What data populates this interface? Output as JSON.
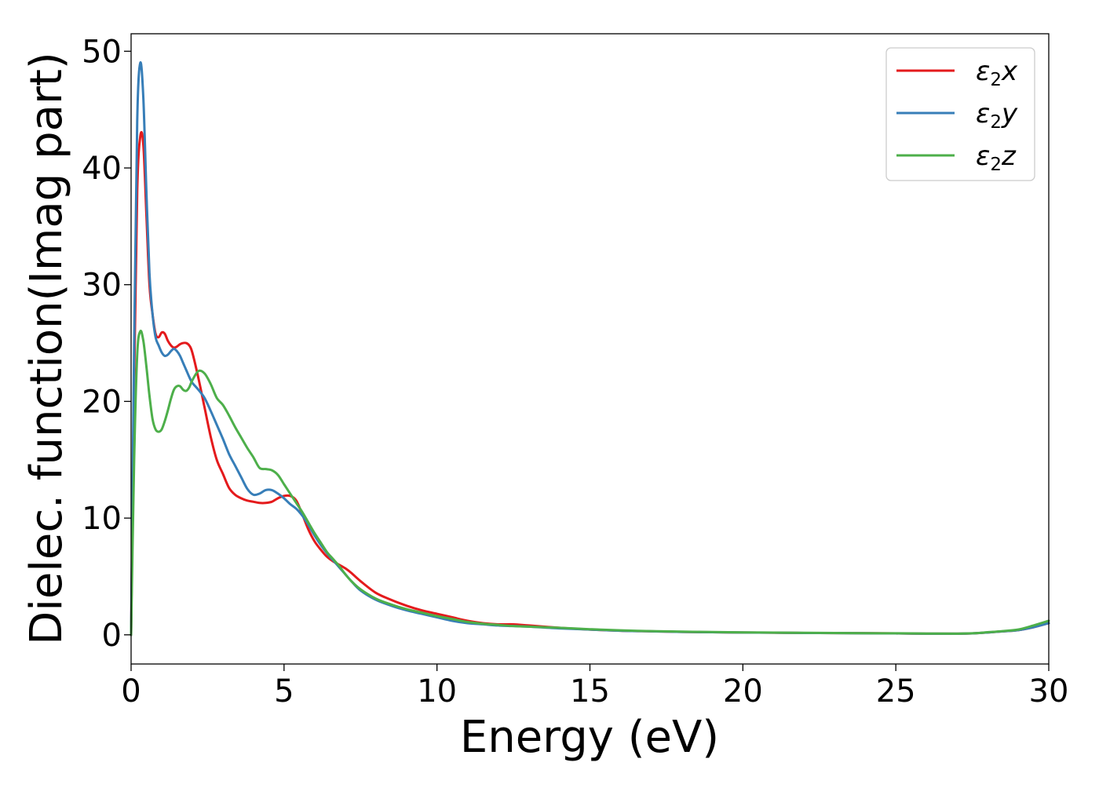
{
  "chart_data": {
    "type": "line",
    "title": "",
    "xlabel": "Energy (eV)",
    "ylabel": "Dielec. function(Imag part)",
    "xlim": [
      0,
      30
    ],
    "ylim": [
      -2.5,
      51.5
    ],
    "xticks": [
      0,
      5,
      10,
      15,
      20,
      25,
      30
    ],
    "xtick_labels": [
      "0",
      "5",
      "10",
      "15",
      "20",
      "25",
      "30"
    ],
    "yticks": [
      0,
      10,
      20,
      30,
      40,
      50
    ],
    "ytick_labels": [
      "0",
      "10",
      "20",
      "30",
      "40",
      "50"
    ],
    "grid": false,
    "legend_position": "top-right",
    "series": [
      {
        "name": "ε₂x",
        "name_base": "ε",
        "name_sub": "2",
        "name_tail": "x",
        "color": "#e41a1c",
        "x": [
          0,
          0.1,
          0.2,
          0.3,
          0.4,
          0.5,
          0.6,
          0.7,
          0.8,
          0.9,
          1.0,
          1.1,
          1.2,
          1.3,
          1.4,
          1.5,
          1.6,
          1.7,
          1.8,
          1.9,
          2.0,
          2.2,
          2.4,
          2.6,
          2.8,
          3.0,
          3.2,
          3.4,
          3.6,
          3.8,
          4.0,
          4.2,
          4.4,
          4.6,
          4.8,
          5.0,
          5.2,
          5.4,
          5.6,
          5.8,
          6.0,
          6.2,
          6.4,
          6.6,
          6.8,
          7.0,
          7.2,
          7.5,
          8.0,
          8.5,
          9.0,
          9.5,
          10,
          10.5,
          11,
          11.5,
          12,
          12.5,
          13,
          14,
          15,
          16,
          17,
          18,
          19,
          20,
          21,
          22,
          23,
          24,
          25,
          26,
          27,
          27.5,
          28,
          28.5,
          29,
          29.5,
          30
        ],
        "values": [
          0,
          22,
          38,
          42.7,
          42,
          36,
          30,
          27.5,
          25.8,
          25.5,
          25.9,
          25.8,
          25.2,
          24.8,
          24.6,
          24.7,
          24.9,
          25.0,
          25.0,
          24.8,
          24.2,
          22.0,
          19.5,
          17.0,
          15.0,
          13.8,
          12.6,
          12.0,
          11.7,
          11.5,
          11.4,
          11.3,
          11.3,
          11.4,
          11.7,
          11.9,
          11.9,
          11.5,
          10.3,
          9.0,
          8.0,
          7.3,
          6.7,
          6.3,
          6.0,
          5.7,
          5.3,
          4.6,
          3.6,
          3.0,
          2.5,
          2.1,
          1.8,
          1.5,
          1.2,
          1.0,
          0.9,
          0.9,
          0.8,
          0.6,
          0.45,
          0.35,
          0.3,
          0.25,
          0.22,
          0.2,
          0.18,
          0.16,
          0.15,
          0.14,
          0.12,
          0.1,
          0.1,
          0.12,
          0.2,
          0.3,
          0.4,
          0.65,
          1.0
        ]
      },
      {
        "name": "ε₂y",
        "name_base": "ε",
        "name_sub": "2",
        "name_tail": "y",
        "color": "#377eb8",
        "x": [
          0,
          0.1,
          0.2,
          0.3,
          0.4,
          0.5,
          0.6,
          0.7,
          0.8,
          0.9,
          1.0,
          1.1,
          1.2,
          1.3,
          1.4,
          1.5,
          1.6,
          1.7,
          1.8,
          1.9,
          2.0,
          2.2,
          2.4,
          2.6,
          2.8,
          3.0,
          3.2,
          3.4,
          3.6,
          3.8,
          4.0,
          4.2,
          4.4,
          4.6,
          4.8,
          5.0,
          5.2,
          5.4,
          5.6,
          5.8,
          6.0,
          6.2,
          6.4,
          6.6,
          6.8,
          7.0,
          7.2,
          7.5,
          8.0,
          8.5,
          9.0,
          9.5,
          10,
          10.5,
          11,
          11.5,
          12,
          12.5,
          13,
          14,
          15,
          16,
          17,
          18,
          19,
          20,
          21,
          22,
          23,
          24,
          25,
          26,
          27,
          27.5,
          28,
          28.5,
          29,
          29.5,
          30
        ],
        "values": [
          0,
          25,
          44,
          49.0,
          46,
          38,
          31,
          27.5,
          25.5,
          24.8,
          24.2,
          23.9,
          24.0,
          24.3,
          24.5,
          24.3,
          23.9,
          23.3,
          22.7,
          22.1,
          21.6,
          21.0,
          20.3,
          19.2,
          18.0,
          16.8,
          15.5,
          14.5,
          13.5,
          12.5,
          12.0,
          12.1,
          12.4,
          12.4,
          12.1,
          11.7,
          11.2,
          10.8,
          10.2,
          9.4,
          8.5,
          7.7,
          7.0,
          6.4,
          5.8,
          5.2,
          4.6,
          3.8,
          3.0,
          2.5,
          2.1,
          1.8,
          1.5,
          1.2,
          1.0,
          0.9,
          0.8,
          0.75,
          0.7,
          0.55,
          0.45,
          0.35,
          0.3,
          0.25,
          0.22,
          0.2,
          0.18,
          0.16,
          0.15,
          0.13,
          0.12,
          0.1,
          0.1,
          0.12,
          0.2,
          0.3,
          0.4,
          0.65,
          1.0
        ]
      },
      {
        "name": "ε₂z",
        "name_base": "ε",
        "name_sub": "2",
        "name_tail": "z",
        "color": "#4daf4a",
        "x": [
          0,
          0.1,
          0.2,
          0.3,
          0.4,
          0.5,
          0.6,
          0.7,
          0.8,
          0.9,
          1.0,
          1.1,
          1.2,
          1.3,
          1.4,
          1.5,
          1.6,
          1.7,
          1.8,
          1.9,
          2.0,
          2.2,
          2.4,
          2.6,
          2.8,
          3.0,
          3.2,
          3.4,
          3.6,
          3.8,
          4.0,
          4.2,
          4.4,
          4.6,
          4.8,
          5.0,
          5.2,
          5.4,
          5.6,
          5.8,
          6.0,
          6.2,
          6.4,
          6.6,
          6.8,
          7.0,
          7.2,
          7.5,
          8.0,
          8.5,
          9.0,
          9.5,
          10,
          10.5,
          11,
          11.5,
          12,
          12.5,
          13,
          14,
          15,
          16,
          17,
          18,
          19,
          20,
          21,
          22,
          23,
          24,
          25,
          26,
          27,
          27.5,
          28,
          28.5,
          29,
          29.5,
          30
        ],
        "values": [
          0,
          15,
          24,
          26.0,
          25.2,
          23.0,
          20.5,
          18.5,
          17.6,
          17.4,
          17.6,
          18.3,
          19.2,
          20.2,
          21.0,
          21.3,
          21.3,
          21.0,
          20.9,
          21.2,
          21.8,
          22.6,
          22.4,
          21.5,
          20.3,
          19.7,
          18.8,
          17.8,
          16.9,
          16.0,
          15.2,
          14.3,
          14.2,
          14.1,
          13.7,
          12.9,
          12.1,
          11.3,
          10.5,
          9.6,
          8.7,
          7.9,
          7.1,
          6.5,
          5.9,
          5.2,
          4.6,
          3.9,
          3.1,
          2.6,
          2.2,
          1.9,
          1.6,
          1.35,
          1.1,
          0.95,
          0.85,
          0.75,
          0.7,
          0.6,
          0.48,
          0.38,
          0.32,
          0.27,
          0.24,
          0.21,
          0.19,
          0.17,
          0.16,
          0.14,
          0.13,
          0.11,
          0.1,
          0.13,
          0.22,
          0.32,
          0.45,
          0.8,
          1.2
        ]
      }
    ]
  }
}
